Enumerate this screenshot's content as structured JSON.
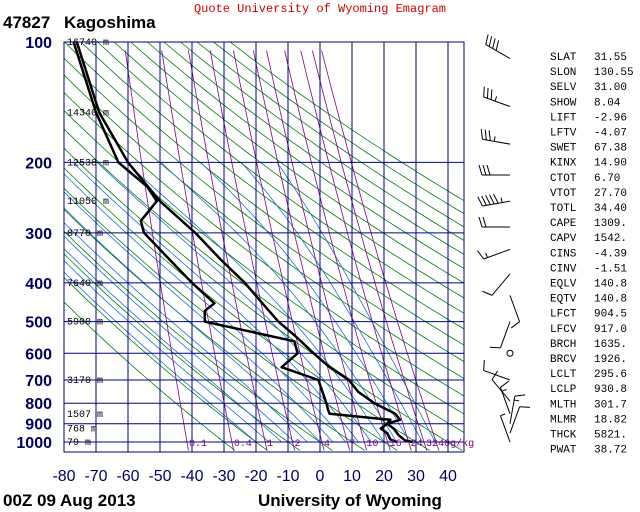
{
  "banner": "Quote University of Wyoming Emagram",
  "station": {
    "id": "47827",
    "name": "Kagoshima"
  },
  "footer": {
    "time": "00Z 09 Aug 2013",
    "source": "University of Wyoming"
  },
  "colors": {
    "frame": "#00008b",
    "dry_adiabat": "#008000",
    "moist_adiabat": "#1874cd",
    "mixing_ratio": "#800080",
    "profile": "#000000"
  },
  "chart_data": {
    "type": "line",
    "xlabel": "",
    "ylabel": "",
    "y_scale": "log-pressure",
    "xlim": [
      -80,
      45
    ],
    "ylim": [
      1050,
      100
    ],
    "pressure_ticks": [
      100,
      200,
      300,
      400,
      500,
      600,
      700,
      800,
      900,
      1000
    ],
    "temperature_ticks": [
      -80,
      -70,
      -60,
      -50,
      -40,
      -30,
      -20,
      -10,
      0,
      10,
      20,
      30,
      40
    ],
    "mixing_ratio_labels": [
      "0.1",
      "0.4",
      "1",
      "2",
      "4",
      "7",
      "10",
      "16",
      "24",
      "32",
      "40g/kg"
    ],
    "height_labels": [
      {
        "p": 100,
        "text": "16740 m"
      },
      {
        "p": 150,
        "text": "14340 m"
      },
      {
        "p": 200,
        "text": "12538 m"
      },
      {
        "p": 250,
        "text": "11050 m"
      },
      {
        "p": 300,
        "text": "8770 m"
      },
      {
        "p": 400,
        "text": "7640 m"
      },
      {
        "p": 500,
        "text": "5900 m"
      },
      {
        "p": 700,
        "text": "3170 m"
      },
      {
        "p": 850,
        "text": "1507 m"
      },
      {
        "p": 925,
        "text": "768 m"
      },
      {
        "p": 1000,
        "text": "79 m"
      }
    ],
    "series": [
      {
        "values": [
          [
            1000,
            29
          ],
          [
            990,
            26.5
          ],
          [
            960,
            24.5
          ],
          [
            925,
            23
          ],
          [
            900,
            21
          ],
          [
            880,
            25
          ],
          [
            850,
            23.5
          ],
          [
            800,
            17
          ],
          [
            750,
            12
          ],
          [
            700,
            9
          ],
          [
            650,
            3
          ],
          [
            600,
            -2
          ],
          [
            550,
            -7
          ],
          [
            500,
            -13
          ],
          [
            450,
            -18
          ],
          [
            400,
            -23.5
          ],
          [
            350,
            -31
          ],
          [
            300,
            -39
          ],
          [
            250,
            -50
          ],
          [
            200,
            -60
          ],
          [
            150,
            -69
          ],
          [
            100,
            -76
          ]
        ]
      },
      {
        "values": [
          [
            1000,
            24
          ],
          [
            985,
            22
          ],
          [
            950,
            21
          ],
          [
            925,
            19
          ],
          [
            900,
            21
          ],
          [
            880,
            22
          ],
          [
            850,
            3
          ],
          [
            830,
            2.5
          ],
          [
            800,
            2
          ],
          [
            700,
            -0.5
          ],
          [
            650,
            -12
          ],
          [
            600,
            -7
          ],
          [
            560,
            -8
          ],
          [
            500,
            -36
          ],
          [
            470,
            -36
          ],
          [
            450,
            -33
          ],
          [
            400,
            -40
          ],
          [
            350,
            -47
          ],
          [
            300,
            -55
          ],
          [
            280,
            -56
          ],
          [
            250,
            -51
          ],
          [
            230,
            -54
          ],
          [
            200,
            -63
          ],
          [
            150,
            -70
          ],
          [
            100,
            -77
          ]
        ]
      }
    ]
  },
  "indices": [
    {
      "k": "SLAT",
      "v": "31.55"
    },
    {
      "k": "SLON",
      "v": "130.55"
    },
    {
      "k": "SELV",
      "v": "31.00"
    },
    {
      "k": "SHOW",
      "v": "8.04"
    },
    {
      "k": "LIFT",
      "v": "-2.96"
    },
    {
      "k": "LFTV",
      "v": "-4.07"
    },
    {
      "k": "SWET",
      "v": "67.38"
    },
    {
      "k": "KINX",
      "v": "14.90"
    },
    {
      "k": "CTOT",
      "v": "6.70"
    },
    {
      "k": "VTOT",
      "v": "27.70"
    },
    {
      "k": "TOTL",
      "v": "34.40"
    },
    {
      "k": "CAPE",
      "v": "1309."
    },
    {
      "k": "CAPV",
      "v": "1542."
    },
    {
      "k": "CINS",
      "v": "-4.39"
    },
    {
      "k": "CINV",
      "v": "-1.51"
    },
    {
      "k": "EQLV",
      "v": "140.8"
    },
    {
      "k": "EQTV",
      "v": "140.8"
    },
    {
      "k": "LFCT",
      "v": "904.5"
    },
    {
      "k": "LFCV",
      "v": "917.0"
    },
    {
      "k": "BRCH",
      "v": "1635."
    },
    {
      "k": "BRCV",
      "v": "1926."
    },
    {
      "k": "LCLT",
      "v": "295.6"
    },
    {
      "k": "LCLP",
      "v": "930.8"
    },
    {
      "k": "MLTH",
      "v": "301.7"
    },
    {
      "k": "MLMR",
      "v": "18.82"
    },
    {
      "k": "THCK",
      "v": "5821."
    },
    {
      "k": "PWAT",
      "v": "38.72"
    }
  ],
  "winds": [
    {
      "p": 110,
      "dir": 300,
      "spd": 40
    },
    {
      "p": 145,
      "dir": 290,
      "spd": 35
    },
    {
      "p": 180,
      "dir": 280,
      "spd": 35
    },
    {
      "p": 215,
      "dir": 270,
      "spd": 30
    },
    {
      "p": 250,
      "dir": 260,
      "spd": 55
    },
    {
      "p": 290,
      "dir": 270,
      "spd": 20
    },
    {
      "p": 330,
      "dir": 250,
      "spd": 15
    },
    {
      "p": 380,
      "dir": 220,
      "spd": 10
    },
    {
      "p": 430,
      "dir": 160,
      "spd": 10
    },
    {
      "p": 500,
      "dir": 200,
      "spd": 10
    },
    {
      "p": 600,
      "dir": 0,
      "spd": 0
    },
    {
      "p": 700,
      "dir": 290,
      "spd": 10
    },
    {
      "p": 790,
      "dir": 320,
      "spd": 10
    },
    {
      "p": 850,
      "dir": 340,
      "spd": 15
    },
    {
      "p": 900,
      "dir": 10,
      "spd": 15
    },
    {
      "p": 950,
      "dir": 20,
      "spd": 10
    },
    {
      "p": 1000,
      "dir": 340,
      "spd": 5
    }
  ]
}
